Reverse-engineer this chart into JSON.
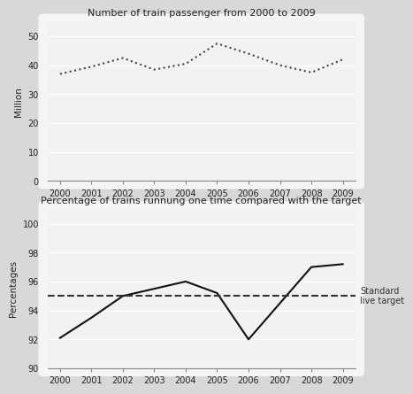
{
  "chart1": {
    "title": "Number of train passenger from 2000 to 2009",
    "years": [
      2000,
      2001,
      2002,
      2003,
      2004,
      2005,
      2006,
      2007,
      2008,
      2009
    ],
    "values": [
      37,
      39.5,
      42.5,
      38.5,
      40.5,
      47.5,
      44,
      40,
      37.5,
      42
    ],
    "ylabel": "Million",
    "ylim": [
      0,
      55
    ],
    "yticks": [
      0,
      10,
      20,
      30,
      40,
      50
    ],
    "line_color": "#444444",
    "bg_color": "#f0f0f0"
  },
  "chart2": {
    "title": "Percentage of trains runnung one time compared with the target",
    "years": [
      2000,
      2001,
      2002,
      2003,
      2004,
      2005,
      2006,
      2007,
      2008,
      2009
    ],
    "values": [
      92.1,
      93.5,
      95.0,
      95.5,
      96.0,
      95.2,
      92.0,
      94.5,
      97.0,
      97.2
    ],
    "ylabel": "Percentages",
    "ylim": [
      90,
      101
    ],
    "yticks": [
      90,
      92,
      94,
      96,
      98,
      100
    ],
    "target_value": 95.0,
    "target_label": "Standard\nlive target",
    "line_color": "#111111",
    "target_line_color": "#333333",
    "bg_color": "#f0f0f0"
  },
  "fig_bg": "#d8d8d8",
  "panel_bg": "#f2f2f2",
  "grid_color": "#ffffff",
  "spine_color": "#888888"
}
